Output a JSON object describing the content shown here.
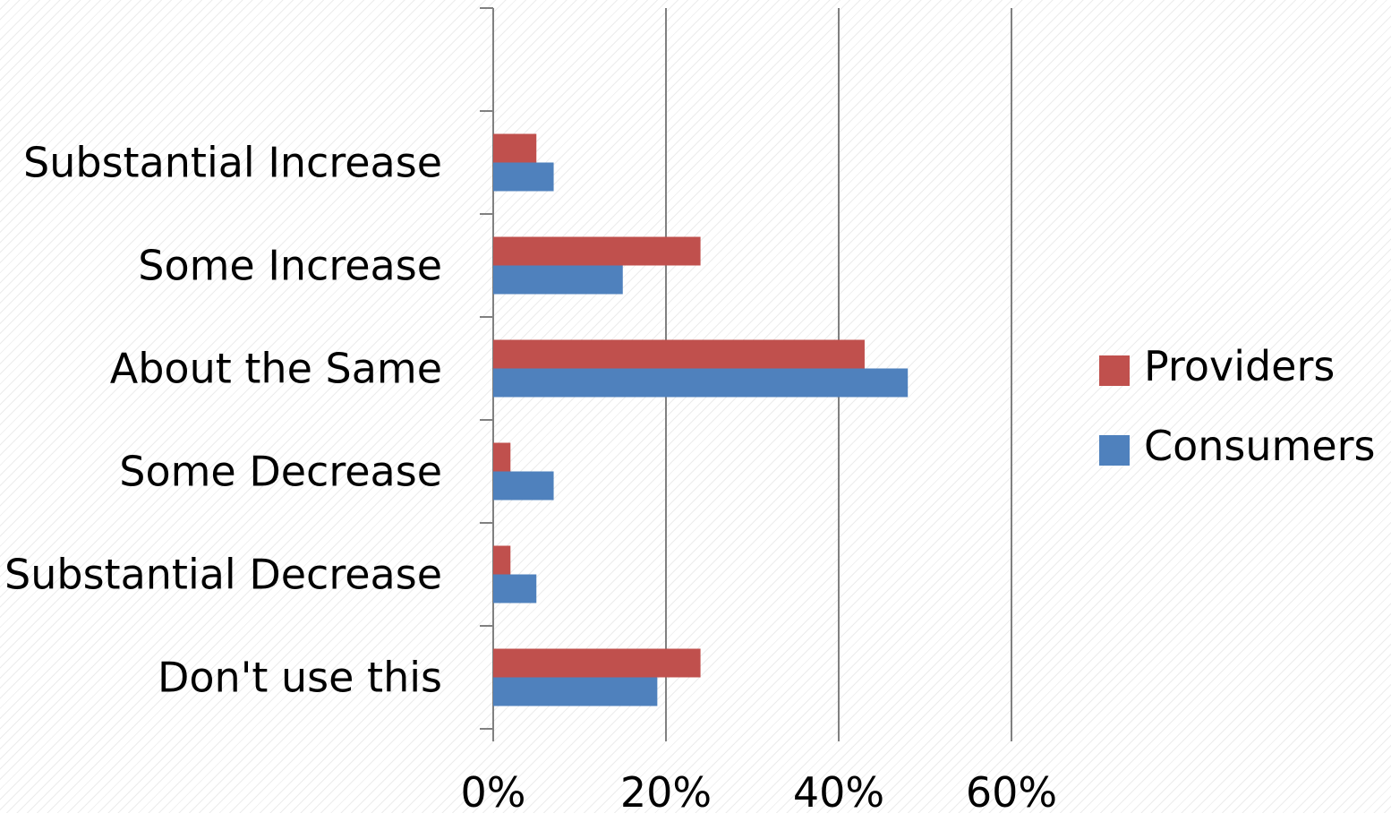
{
  "chart_data": {
    "type": "bar",
    "orientation": "horizontal",
    "categories": [
      "Substantial Increase",
      "Some Increase",
      "About the Same",
      "Some Decrease",
      "Substantial Decrease",
      "Don't use this"
    ],
    "series": [
      {
        "name": "Providers",
        "color": "#c0504d",
        "values": [
          5,
          24,
          43,
          2,
          2,
          24
        ]
      },
      {
        "name": "Consumers",
        "color": "#4f81bd",
        "values": [
          7,
          15,
          48,
          7,
          5,
          19
        ]
      }
    ],
    "x_ticks": [
      "0%",
      "20%",
      "40%",
      "60%"
    ],
    "xlim": [
      0,
      60
    ],
    "grid": "vertical",
    "legend_position": "right"
  }
}
